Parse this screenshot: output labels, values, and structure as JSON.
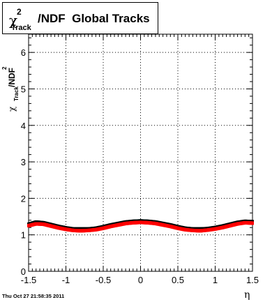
{
  "title": {
    "symbol": "χ",
    "superscript": "2",
    "subscript": "Track",
    "text": "/NDF  Global Tracks"
  },
  "footer": "Thu Oct 27 21:58:35 2011",
  "chart_data": {
    "type": "scatter",
    "xlabel": "η",
    "ylabel": {
      "symbol": "χ",
      "superscript": "2",
      "subscript": "Track",
      "text": "/NDF"
    },
    "xlim": [
      -1.5,
      1.5
    ],
    "ylim": [
      0,
      6.5
    ],
    "x_ticks": [
      "-1.5",
      "-1",
      "-0.5",
      "0",
      "0.5",
      "1",
      "1.5"
    ],
    "y_ticks": [
      "0",
      "1",
      "2",
      "3",
      "4",
      "5",
      "6"
    ],
    "grid": true,
    "series": [
      {
        "color": "#000000",
        "x": [
          -1.5,
          -1.4,
          -1.3,
          -1.2,
          -1.1,
          -1.0,
          -0.9,
          -0.8,
          -0.7,
          -0.6,
          -0.5,
          -0.4,
          -0.3,
          -0.2,
          -0.1,
          0.0,
          0.1,
          0.2,
          0.3,
          0.4,
          0.5,
          0.6,
          0.7,
          0.8,
          0.9,
          1.0,
          1.1,
          1.2,
          1.3,
          1.4,
          1.5
        ],
        "values": [
          1.3,
          1.36,
          1.34,
          1.29,
          1.24,
          1.2,
          1.17,
          1.17,
          1.17,
          1.19,
          1.23,
          1.28,
          1.32,
          1.36,
          1.38,
          1.39,
          1.38,
          1.36,
          1.32,
          1.28,
          1.23,
          1.19,
          1.17,
          1.17,
          1.18,
          1.21,
          1.25,
          1.3,
          1.35,
          1.38,
          1.37
        ]
      },
      {
        "color": "#ff0000",
        "x": [
          -1.5,
          -1.4,
          -1.3,
          -1.2,
          -1.1,
          -1.0,
          -0.9,
          -0.8,
          -0.7,
          -0.6,
          -0.5,
          -0.4,
          -0.3,
          -0.2,
          -0.1,
          0.0,
          0.1,
          0.2,
          0.3,
          0.4,
          0.5,
          0.6,
          0.7,
          0.8,
          0.9,
          1.0,
          1.1,
          1.2,
          1.3,
          1.4,
          1.5
        ],
        "values": [
          1.26,
          1.31,
          1.3,
          1.25,
          1.2,
          1.16,
          1.13,
          1.12,
          1.13,
          1.15,
          1.19,
          1.24,
          1.28,
          1.32,
          1.34,
          1.35,
          1.34,
          1.32,
          1.28,
          1.24,
          1.19,
          1.15,
          1.13,
          1.12,
          1.14,
          1.17,
          1.21,
          1.26,
          1.31,
          1.34,
          1.33
        ]
      }
    ]
  }
}
